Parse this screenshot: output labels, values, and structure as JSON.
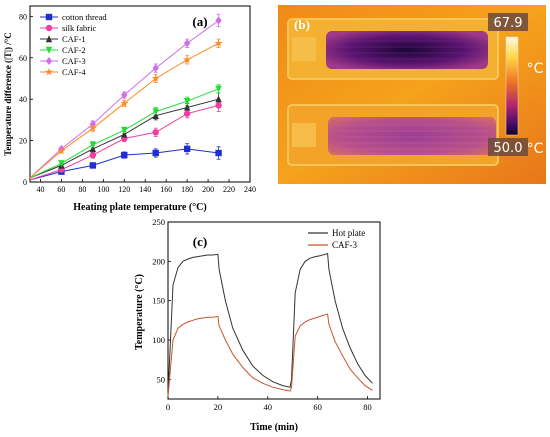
{
  "chart_data": [
    {
      "type": "line",
      "panel_label": "(a)",
      "xlabel": "Heating plate temperature (°C)",
      "ylabel": "Temperature difference (|T|) /°C",
      "xlim": [
        30,
        240
      ],
      "ylim": [
        0,
        85
      ],
      "xticks": [
        40,
        60,
        80,
        100,
        120,
        140,
        160,
        180,
        200,
        220,
        240
      ],
      "yticks": [
        0,
        20,
        40,
        60,
        80
      ],
      "x": [
        30,
        60,
        90,
        120,
        150,
        180,
        210
      ],
      "legend_position": "top-left",
      "series": [
        {
          "name": "cotton thread",
          "color": "#1f2fd1",
          "marker": "square",
          "values": [
            1,
            5,
            8,
            13,
            14,
            16,
            14
          ],
          "err": [
            0.5,
            1,
            1,
            1.5,
            2,
            2.5,
            3
          ]
        },
        {
          "name": "silk fabric",
          "color": "#f03fa0",
          "marker": "circle",
          "values": [
            1,
            6,
            13,
            21,
            24,
            33,
            37
          ],
          "err": [
            0.5,
            1,
            1.5,
            1.5,
            2,
            2,
            3
          ]
        },
        {
          "name": "CAF-1",
          "color": "#333333",
          "marker": "triangle",
          "values": [
            2,
            8,
            16,
            23,
            32,
            36,
            40
          ],
          "err": [
            0.5,
            1,
            1.5,
            1.5,
            2,
            2,
            3
          ]
        },
        {
          "name": "CAF-2",
          "color": "#22dd33",
          "marker": "triangle-down",
          "values": [
            2,
            9,
            18,
            25,
            34,
            39,
            45
          ],
          "err": [
            0.5,
            1,
            1.5,
            1.5,
            2,
            2,
            2
          ]
        },
        {
          "name": "CAF-3",
          "color": "#d070e8",
          "marker": "diamond",
          "values": [
            2,
            16,
            28,
            42,
            55,
            67,
            78
          ],
          "err": [
            0.5,
            1,
            1.5,
            1.5,
            2,
            2,
            3
          ]
        },
        {
          "name": "CAF-4",
          "color": "#ff8a20",
          "marker": "star",
          "values": [
            2,
            15,
            26,
            38,
            50,
            59,
            67
          ],
          "err": [
            0.5,
            1,
            1.5,
            1.5,
            2,
            2,
            2
          ]
        }
      ]
    },
    {
      "type": "line",
      "panel_label": "(c)",
      "xlabel": "Time (min)",
      "ylabel": "Temperature (°C)",
      "xlim": [
        0,
        85
      ],
      "ylim": [
        25,
        250
      ],
      "xticks": [
        0,
        20,
        40,
        60,
        80
      ],
      "yticks": [
        50,
        100,
        150,
        200,
        250
      ],
      "legend_position": "top-right",
      "series": [
        {
          "name": "Hot plate",
          "color": "#333333",
          "x": [
            0,
            2,
            4,
            6,
            8,
            10,
            12,
            14,
            16,
            18,
            20,
            20.5,
            23,
            26,
            30,
            34,
            38,
            42,
            46,
            49,
            49.5,
            51,
            53,
            55,
            57,
            59,
            61,
            63,
            64,
            64.5,
            67,
            70,
            73,
            76,
            79,
            82
          ],
          "values": [
            30,
            170,
            192,
            200,
            203,
            205,
            206,
            207,
            208,
            208,
            209,
            190,
            150,
            115,
            87,
            67,
            55,
            47,
            42,
            40,
            50,
            160,
            190,
            200,
            204,
            206,
            207,
            209,
            210,
            190,
            150,
            115,
            90,
            70,
            55,
            45
          ]
        },
        {
          "name": "CAF-3",
          "color": "#c8542a",
          "x": [
            0,
            2,
            4,
            6,
            8,
            10,
            12,
            14,
            16,
            18,
            20,
            20.5,
            23,
            26,
            30,
            34,
            38,
            42,
            46,
            49,
            49.5,
            51,
            53,
            55,
            57,
            59,
            61,
            63,
            64,
            64.5,
            67,
            70,
            73,
            76,
            79,
            82
          ],
          "values": [
            28,
            100,
            115,
            120,
            123,
            125,
            127,
            128,
            129,
            129,
            130,
            118,
            100,
            82,
            65,
            52,
            45,
            40,
            37,
            35,
            40,
            105,
            118,
            123,
            126,
            128,
            130,
            132,
            133,
            120,
            98,
            80,
            63,
            52,
            42,
            36
          ]
        }
      ]
    }
  ],
  "thermal_image": {
    "panel_label": "(b)",
    "max_reading": "67.9",
    "min_reading": "50.0",
    "unit": "°C",
    "colors": {
      "hot": "#f7a91c",
      "warm": "#e86e14",
      "cool": "#8c1d86",
      "cold": "#2a0a4a"
    }
  }
}
